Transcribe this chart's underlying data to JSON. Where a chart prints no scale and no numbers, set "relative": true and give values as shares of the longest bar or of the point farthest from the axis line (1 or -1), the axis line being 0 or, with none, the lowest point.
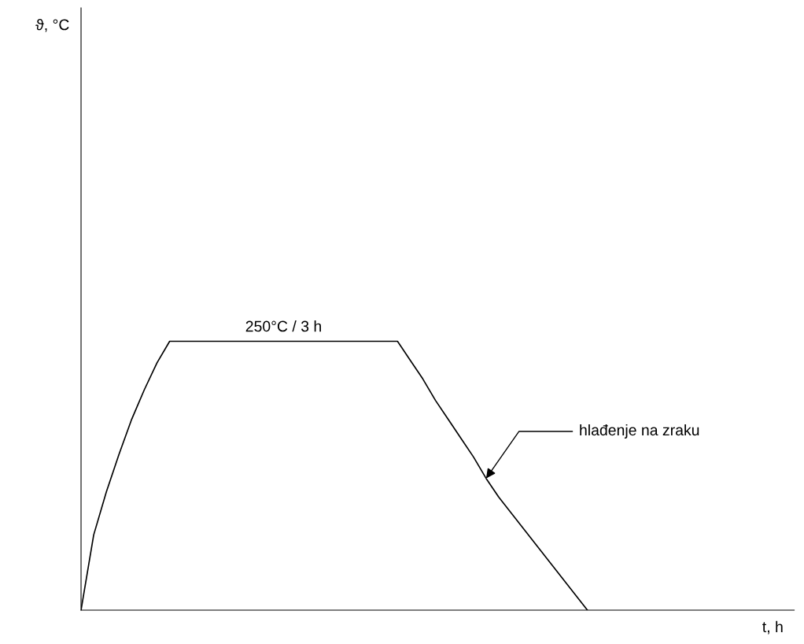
{
  "chart_data": {
    "type": "line",
    "relative": true,
    "categories": [
      null,
      null,
      null,
      null,
      null,
      null,
      null,
      null,
      null,
      null,
      null,
      null,
      null,
      null,
      null,
      null,
      null,
      null,
      null,
      null,
      null,
      null,
      null,
      null,
      null,
      null,
      null,
      null,
      null,
      null,
      null,
      null,
      null,
      null,
      null,
      null,
      null,
      null,
      null,
      null,
      null
    ],
    "series": [
      {
        "color": "#000000",
        "values": [
          0,
          0.28,
          0.44,
          0.58,
          0.71,
          0.82,
          0.92,
          1,
          1,
          1,
          1,
          1,
          1,
          1,
          1,
          1,
          1,
          1,
          1,
          1,
          1,
          1,
          1,
          1,
          1,
          1,
          0.93,
          0.86,
          0.78,
          0.71,
          0.64,
          0.57,
          0.49,
          0.42,
          0.36,
          0.3,
          0.24,
          0.18,
          0.12,
          0.06,
          0
        ]
      }
    ],
    "marker": "none",
    "line_style": "solid",
    "tick_labels": false,
    "annotations": [
      "250°C / 3 h",
      "hlađenje na zraku",
      "ϑ, °C",
      "t, h"
    ]
  }
}
